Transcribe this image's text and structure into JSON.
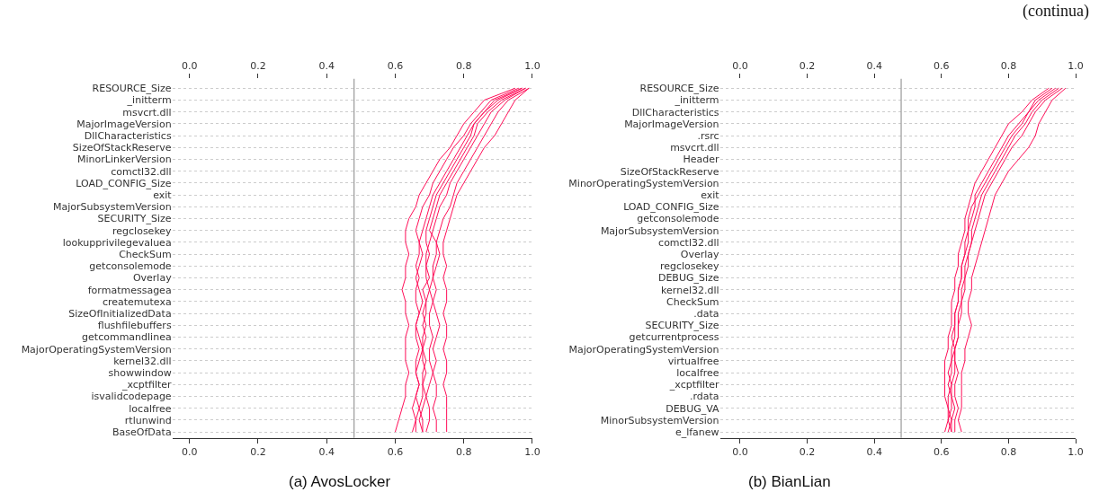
{
  "chart_data": [
    {
      "type": "line",
      "title": "(a) AvosLocker",
      "orientation": "horizontal",
      "annotations": [
        "(continua)"
      ],
      "categories": [
        "RESOURCE_Size",
        "_initterm",
        "msvcrt.dll",
        "MajorImageVersion",
        "DllCharacteristics",
        "SizeOfStackReserve",
        "MinorLinkerVersion",
        "comctl32.dll",
        "LOAD_CONFIG_Size",
        "exit",
        "MajorSubsystemVersion",
        "SECURITY_Size",
        "regclosekey",
        "lookupprivilegevaluea",
        "CheckSum",
        "getconsolemode",
        "Overlay",
        "formatmessagea",
        "createmutexa",
        "SizeOfInitializedData",
        "flushfilebuffers",
        "getcommandlinea",
        "MajorOperatingSystemVersion",
        "kernel32.dll",
        "showwindow",
        "_xcptfilter",
        "isvalidcodepage",
        "localfree",
        "rtlunwind",
        "BaseOfData"
      ],
      "xlim": [
        -0.05,
        1.0
      ],
      "xticks": [
        {
          "value": 0.0,
          "label": "0.0"
        },
        {
          "value": 0.2,
          "label": "0.2"
        },
        {
          "value": 0.4,
          "label": "0.4"
        },
        {
          "value": 0.6,
          "label": "0.6"
        },
        {
          "value": 0.8,
          "label": "0.8"
        },
        {
          "value": 1.0,
          "label": "1.0"
        }
      ],
      "x2lim": [
        -0.05,
        1.0
      ],
      "x2ticks": [
        {
          "value": 0.0,
          "label": "0.0"
        },
        {
          "value": 0.2,
          "label": "0.2"
        },
        {
          "value": 0.4,
          "label": "0.4"
        },
        {
          "value": 0.6,
          "label": "0.6"
        },
        {
          "value": 0.8,
          "label": "0.8"
        },
        {
          "value": 1.0,
          "label": "1.0"
        }
      ],
      "grid": "y",
      "ref_lines": [
        {
          "axis": "x",
          "value": 0.48,
          "color": "#999999"
        }
      ],
      "series": [
        {
          "color": "#ff0d57",
          "values": [
            0.95,
            0.86,
            0.83,
            0.8,
            0.78,
            0.76,
            0.73,
            0.71,
            0.69,
            0.67,
            0.66,
            0.64,
            0.63,
            0.63,
            0.64,
            0.63,
            0.63,
            0.62,
            0.63,
            0.63,
            0.64,
            0.63,
            0.63,
            0.63,
            0.64,
            0.63,
            0.63,
            0.62,
            0.61,
            0.6
          ]
        },
        {
          "color": "#ff0d57",
          "values": [
            0.97,
            0.9,
            0.86,
            0.83,
            0.81,
            0.79,
            0.77,
            0.75,
            0.73,
            0.71,
            0.7,
            0.69,
            0.68,
            0.67,
            0.67,
            0.66,
            0.67,
            0.66,
            0.66,
            0.67,
            0.66,
            0.66,
            0.67,
            0.66,
            0.66,
            0.67,
            0.66,
            0.65,
            0.66,
            0.65
          ]
        },
        {
          "color": "#ff0d57",
          "values": [
            0.98,
            0.92,
            0.88,
            0.86,
            0.84,
            0.82,
            0.8,
            0.78,
            0.76,
            0.75,
            0.73,
            0.72,
            0.71,
            0.7,
            0.69,
            0.69,
            0.7,
            0.68,
            0.69,
            0.68,
            0.69,
            0.68,
            0.68,
            0.69,
            0.68,
            0.68,
            0.69,
            0.68,
            0.67,
            0.68
          ]
        },
        {
          "color": "#ff0d57",
          "values": [
            0.99,
            0.93,
            0.9,
            0.88,
            0.86,
            0.84,
            0.82,
            0.8,
            0.78,
            0.77,
            0.76,
            0.74,
            0.73,
            0.72,
            0.72,
            0.71,
            0.71,
            0.7,
            0.71,
            0.7,
            0.7,
            0.71,
            0.7,
            0.7,
            0.71,
            0.7,
            0.69,
            0.7,
            0.7,
            0.69
          ]
        },
        {
          "color": "#ff0d57",
          "values": [
            0.99,
            0.95,
            0.93,
            0.91,
            0.89,
            0.86,
            0.84,
            0.82,
            0.8,
            0.78,
            0.77,
            0.76,
            0.75,
            0.74,
            0.74,
            0.75,
            0.74,
            0.75,
            0.75,
            0.74,
            0.75,
            0.75,
            0.74,
            0.75,
            0.75,
            0.74,
            0.75,
            0.75,
            0.75,
            0.75
          ]
        },
        {
          "color": "#ff0d57",
          "values": [
            0.96,
            0.88,
            0.85,
            0.82,
            0.8,
            0.77,
            0.75,
            0.73,
            0.71,
            0.7,
            0.68,
            0.67,
            0.66,
            0.67,
            0.68,
            0.67,
            0.66,
            0.67,
            0.68,
            0.67,
            0.66,
            0.67,
            0.68,
            0.67,
            0.66,
            0.67,
            0.66,
            0.67,
            0.66,
            0.66
          ]
        },
        {
          "color": "#ff0d57",
          "values": [
            0.98,
            0.91,
            0.87,
            0.84,
            0.83,
            0.81,
            0.79,
            0.77,
            0.75,
            0.73,
            0.72,
            0.71,
            0.7,
            0.72,
            0.73,
            0.72,
            0.71,
            0.72,
            0.71,
            0.72,
            0.73,
            0.72,
            0.71,
            0.72,
            0.71,
            0.72,
            0.72,
            0.71,
            0.72,
            0.72
          ]
        },
        {
          "color": "#ff0d57",
          "values": [
            0.97,
            0.89,
            0.86,
            0.83,
            0.82,
            0.8,
            0.78,
            0.76,
            0.74,
            0.72,
            0.71,
            0.7,
            0.69,
            0.69,
            0.7,
            0.69,
            0.69,
            0.7,
            0.69,
            0.69,
            0.68,
            0.69,
            0.68,
            0.68,
            0.69,
            0.68,
            0.68,
            0.67,
            0.68,
            0.68
          ]
        }
      ]
    },
    {
      "type": "line",
      "title": "(b) BianLian",
      "orientation": "horizontal",
      "categories": [
        "RESOURCE_Size",
        "_initterm",
        "DllCharacteristics",
        "MajorImageVersion",
        ".rsrc",
        "msvcrt.dll",
        "Header",
        "SizeOfStackReserve",
        "MinorOperatingSystemVersion",
        "exit",
        "LOAD_CONFIG_Size",
        "getconsolemode",
        "MajorSubsystemVersion",
        "comctl32.dll",
        "Overlay",
        "regclosekey",
        "DEBUG_Size",
        "kernel32.dll",
        "CheckSum",
        ".data",
        "SECURITY_Size",
        "getcurrentprocess",
        "MajorOperatingSystemVersion",
        "virtualfree",
        "localfree",
        "_xcptfilter",
        ".rdata",
        "DEBUG_VA",
        "MinorSubsystemVersion",
        "e_lfanew"
      ],
      "xlim": [
        -0.06,
        1.0
      ],
      "xticks": [
        {
          "value": 0.0,
          "label": "0.0"
        },
        {
          "value": 0.2,
          "label": "0.2"
        },
        {
          "value": 0.4,
          "label": "0.4"
        },
        {
          "value": 0.6,
          "label": "0.6"
        },
        {
          "value": 0.8,
          "label": "0.8"
        },
        {
          "value": 1.0,
          "label": "1.0"
        }
      ],
      "x2lim": [
        -0.06,
        1.0
      ],
      "x2ticks": [
        {
          "value": 0.0,
          "label": "0.0"
        },
        {
          "value": 0.2,
          "label": "0.2"
        },
        {
          "value": 0.4,
          "label": "0.4"
        },
        {
          "value": 0.6,
          "label": "0.6"
        },
        {
          "value": 0.8,
          "label": "0.8"
        },
        {
          "value": 1.0,
          "label": "1.0"
        }
      ],
      "grid": "y",
      "ref_lines": [
        {
          "axis": "x",
          "value": 0.48,
          "color": "#999999"
        }
      ],
      "series": [
        {
          "color": "#ff0d57",
          "values": [
            0.92,
            0.87,
            0.84,
            0.8,
            0.78,
            0.76,
            0.74,
            0.72,
            0.7,
            0.69,
            0.68,
            0.67,
            0.67,
            0.66,
            0.65,
            0.65,
            0.64,
            0.64,
            0.63,
            0.63,
            0.63,
            0.62,
            0.62,
            0.61,
            0.61,
            0.61,
            0.61,
            0.62,
            0.62,
            0.61
          ]
        },
        {
          "color": "#ff0d57",
          "values": [
            0.94,
            0.89,
            0.86,
            0.84,
            0.81,
            0.79,
            0.77,
            0.75,
            0.73,
            0.71,
            0.69,
            0.68,
            0.68,
            0.67,
            0.67,
            0.66,
            0.66,
            0.65,
            0.65,
            0.64,
            0.64,
            0.63,
            0.64,
            0.63,
            0.63,
            0.62,
            0.63,
            0.63,
            0.62,
            0.63
          ]
        },
        {
          "color": "#ff0d57",
          "values": [
            0.96,
            0.91,
            0.88,
            0.86,
            0.84,
            0.81,
            0.79,
            0.77,
            0.75,
            0.73,
            0.72,
            0.71,
            0.7,
            0.69,
            0.68,
            0.68,
            0.67,
            0.67,
            0.66,
            0.66,
            0.65,
            0.65,
            0.64,
            0.64,
            0.65,
            0.64,
            0.64,
            0.65,
            0.64,
            0.64
          ]
        },
        {
          "color": "#ff0d57",
          "values": [
            0.97,
            0.93,
            0.91,
            0.89,
            0.88,
            0.86,
            0.83,
            0.8,
            0.78,
            0.76,
            0.75,
            0.74,
            0.73,
            0.72,
            0.71,
            0.7,
            0.69,
            0.69,
            0.68,
            0.68,
            0.69,
            0.68,
            0.67,
            0.67,
            0.66,
            0.66,
            0.66,
            0.66,
            0.65,
            0.66
          ]
        },
        {
          "color": "#ff0d57",
          "values": [
            0.95,
            0.9,
            0.87,
            0.85,
            0.82,
            0.8,
            0.78,
            0.76,
            0.74,
            0.72,
            0.71,
            0.7,
            0.69,
            0.69,
            0.68,
            0.67,
            0.67,
            0.66,
            0.66,
            0.65,
            0.65,
            0.65,
            0.64,
            0.64,
            0.64,
            0.63,
            0.63,
            0.64,
            0.63,
            0.63
          ]
        },
        {
          "color": "#ff0d57",
          "values": [
            0.93,
            0.88,
            0.86,
            0.83,
            0.8,
            0.78,
            0.76,
            0.74,
            0.72,
            0.7,
            0.7,
            0.69,
            0.68,
            0.68,
            0.67,
            0.66,
            0.66,
            0.65,
            0.65,
            0.64,
            0.64,
            0.64,
            0.63,
            0.63,
            0.62,
            0.63,
            0.62,
            0.62,
            0.63,
            0.62
          ]
        }
      ]
    }
  ]
}
